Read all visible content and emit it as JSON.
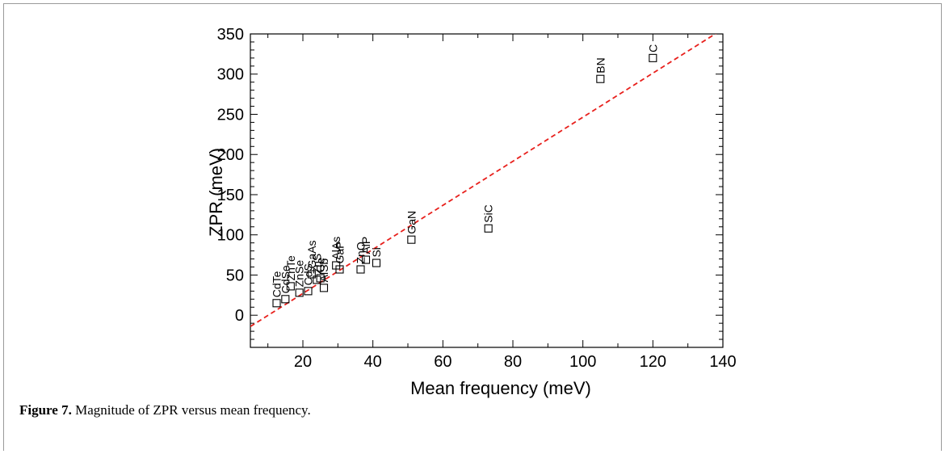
{
  "caption": {
    "label": "Figure 7.",
    "text": "Magnitude of ZPR versus mean frequency."
  },
  "colors": {
    "fit_line": "#e8201c",
    "axes": "#000000",
    "frame": "#9a9a9a"
  },
  "chart_data": {
    "type": "scatter",
    "title": "",
    "xlabel": "Mean frequency (meV)",
    "ylabel": "ZPR (meV)",
    "xlim": [
      5,
      140
    ],
    "ylim": [
      -40,
      350
    ],
    "xticks": [
      20,
      40,
      60,
      80,
      100,
      120,
      140
    ],
    "yticks": [
      0,
      50,
      100,
      150,
      200,
      250,
      300,
      350
    ],
    "grid": false,
    "marker": "open-square",
    "points": [
      {
        "label": "CdTe",
        "x": 12.5,
        "y": 15
      },
      {
        "label": "CdSe",
        "x": 15,
        "y": 20
      },
      {
        "label": "ZnTe",
        "x": 16.5,
        "y": 36
      },
      {
        "label": "ZnSe",
        "x": 19,
        "y": 28
      },
      {
        "label": "CdS",
        "x": 21.5,
        "y": 30
      },
      {
        "label": "GaAs",
        "x": 22.5,
        "y": 51
      },
      {
        "label": "ZnS",
        "x": 24,
        "y": 44
      },
      {
        "label": "Ge",
        "x": 25,
        "y": 46
      },
      {
        "label": "AlSb",
        "x": 26,
        "y": 34
      },
      {
        "label": "AlAs",
        "x": 29.5,
        "y": 62
      },
      {
        "label": "GaP",
        "x": 30.5,
        "y": 57
      },
      {
        "label": "ZnO",
        "x": 36.5,
        "y": 57
      },
      {
        "label": "AlP",
        "x": 38,
        "y": 69
      },
      {
        "label": "Si",
        "x": 41,
        "y": 65
      },
      {
        "label": "GaN",
        "x": 51,
        "y": 94
      },
      {
        "label": "SiC",
        "x": 73,
        "y": 108
      },
      {
        "label": "BN",
        "x": 105,
        "y": 294
      },
      {
        "label": "C",
        "x": 120,
        "y": 320
      }
    ],
    "fit_line": {
      "style": "dashed",
      "x": [
        5,
        140
      ],
      "y": [
        -14,
        356
      ]
    }
  }
}
